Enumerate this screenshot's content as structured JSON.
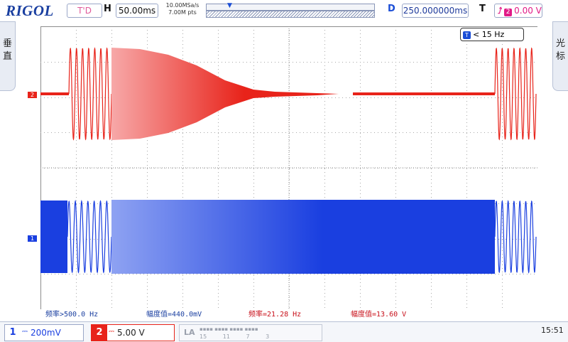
{
  "header": {
    "brand": "RIGOL",
    "trigger_status": "T'D",
    "timebase_label": "H",
    "timebase": "50.00ms",
    "sample_rate": "10.00MSa/s",
    "memory_depth": "7.00M pts",
    "delay_label": "D",
    "delay": "250.000000ms",
    "trigger_label": "T",
    "trigger_source": "2",
    "trigger_level": "0.00 V"
  },
  "side_tabs": {
    "left": [
      "垂",
      "直"
    ],
    "right": [
      "光",
      "标"
    ]
  },
  "screen": {
    "freq_counter": "< 15 Hz",
    "ch2_marker": "2",
    "ch1_marker": "1",
    "trigger_pos_marker": "T"
  },
  "measurements": [
    {
      "text": "频率>500.0 Hz",
      "channel": 1
    },
    {
      "text": "幅度值=440.0mV",
      "channel": 1
    },
    {
      "text": "频率=21.28 Hz",
      "channel": 2
    },
    {
      "text": "幅度值=13.60 V",
      "channel": 2
    }
  ],
  "channels": {
    "ch1": {
      "number": "1",
      "coupling": "⎓",
      "scale": "200mV",
      "color": "#1a3fe0"
    },
    "ch2": {
      "number": "2",
      "coupling": "⎓",
      "scale": "5.00 V",
      "color": "#e8231a"
    }
  },
  "logic_analyzer": {
    "label": "LA",
    "bit_numbers": [
      "15",
      "11",
      "7",
      "3"
    ]
  },
  "clock": "15:51"
}
